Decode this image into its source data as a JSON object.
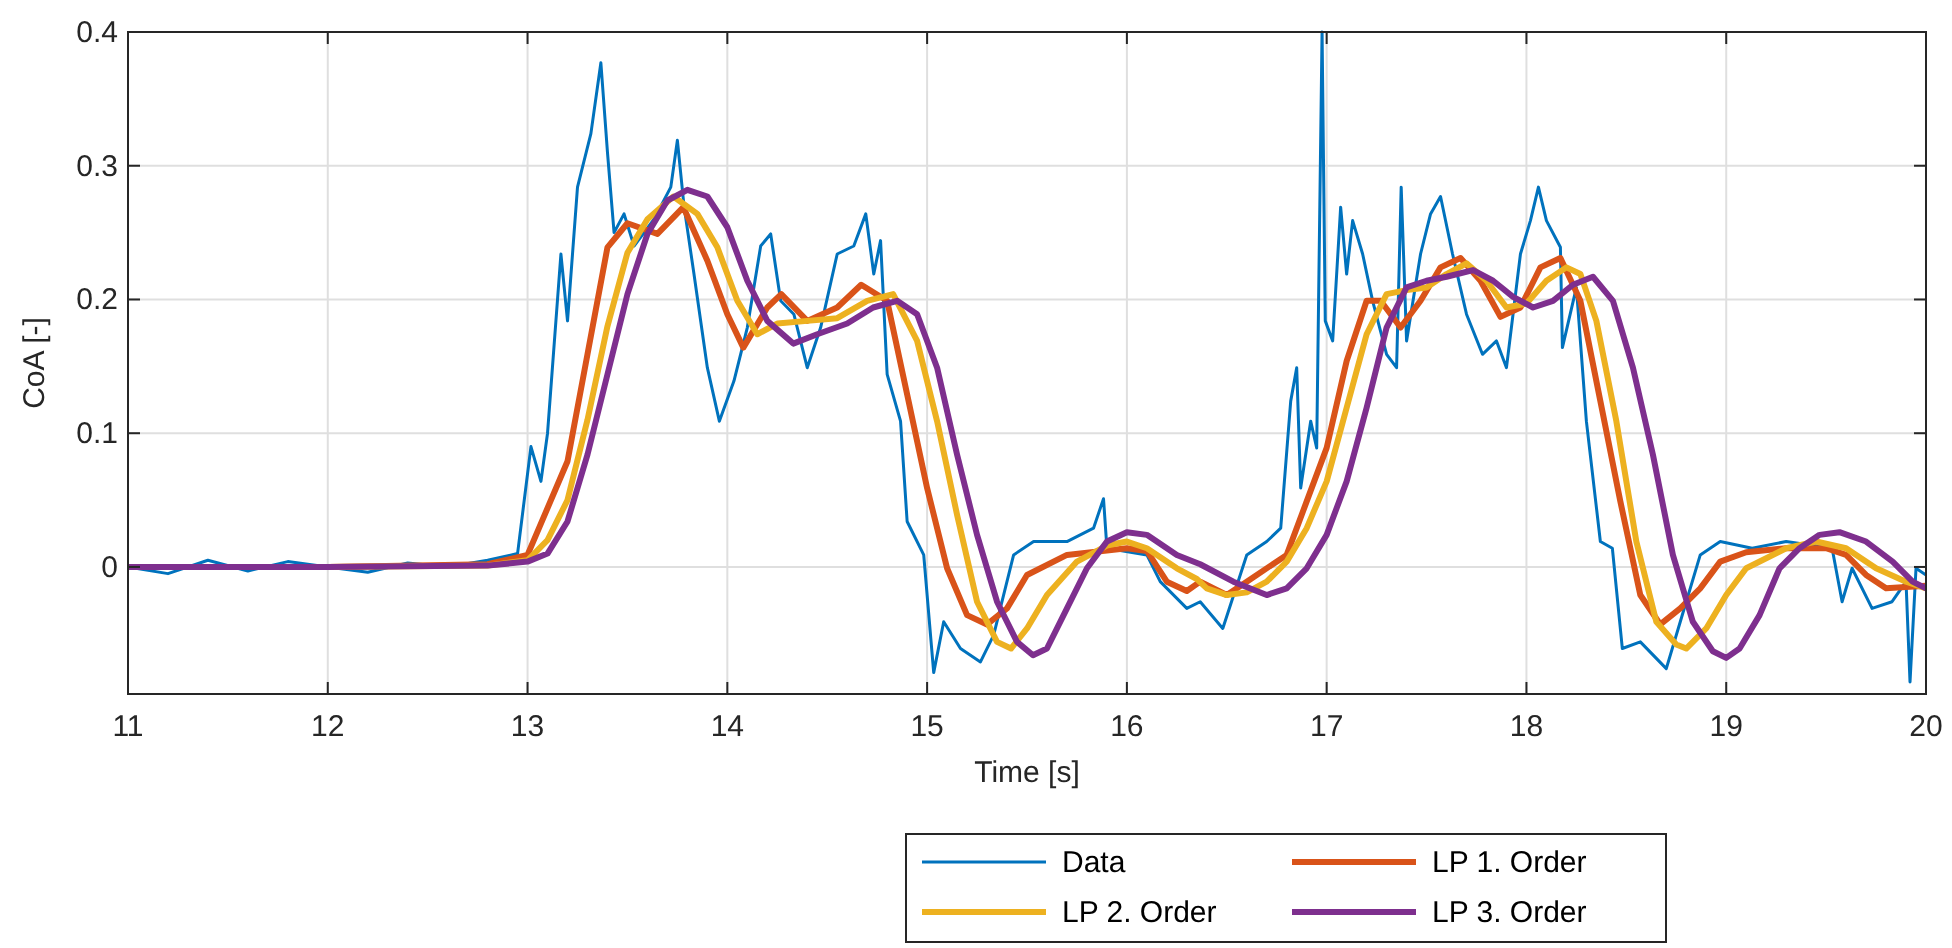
{
  "chart_data": {
    "type": "line",
    "xlabel": "Time [s]",
    "ylabel": "CoA [-]",
    "xlim": [
      11,
      20
    ],
    "ylim": [
      -0.095,
      0.4
    ],
    "xticks": [
      11,
      12,
      13,
      14,
      15,
      16,
      17,
      18,
      19,
      20
    ],
    "yticks": [
      0,
      0.1,
      0.2,
      0.3,
      0.4
    ],
    "grid": true,
    "legend": "bottom",
    "line_style": "solid",
    "marker": "none",
    "series": [
      {
        "name": "Data",
        "color": "#0072bd",
        "x": [
          11,
          11.2,
          11.4,
          11.6,
          11.8,
          12,
          12.2,
          12.4,
          12.6,
          12.8,
          12.95,
          13.017,
          13.067,
          13.1,
          13.167,
          13.2,
          13.25,
          13.317,
          13.367,
          13.4,
          13.433,
          13.483,
          13.533,
          13.633,
          13.717,
          13.75,
          13.783,
          13.833,
          13.9,
          13.96,
          14.033,
          14.1,
          14.167,
          14.217,
          14.267,
          14.333,
          14.4,
          14.467,
          14.55,
          14.633,
          14.693,
          14.733,
          14.767,
          14.8,
          14.867,
          14.9,
          14.983,
          15.033,
          15.083,
          15.167,
          15.267,
          15.333,
          15.433,
          15.533,
          15.7,
          15.833,
          15.883,
          15.9,
          16.1,
          16.167,
          16.3,
          16.367,
          16.48,
          16.6,
          16.7,
          16.77,
          16.82,
          16.85,
          16.87,
          16.92,
          16.95,
          16.977,
          16.993,
          17.03,
          17.07,
          17.1,
          17.13,
          17.18,
          17.23,
          17.3,
          17.35,
          17.373,
          17.4,
          17.47,
          17.52,
          17.57,
          17.63,
          17.7,
          17.78,
          17.85,
          17.9,
          17.97,
          18.02,
          18.06,
          18.1,
          18.17,
          18.18,
          18.25,
          18.3,
          18.37,
          18.43,
          18.48,
          18.57,
          18.7,
          18.77,
          18.87,
          18.97,
          19.13,
          19.3,
          19.53,
          19.58,
          19.63,
          19.73,
          19.83,
          19.9,
          19.92,
          19.95,
          20
        ],
        "values": [
          0,
          -0.005,
          0.005,
          -0.003,
          0.004,
          0,
          -0.004,
          0.003,
          0,
          0.005,
          0.01,
          0.09,
          0.064,
          0.1,
          0.234,
          0.184,
          0.284,
          0.324,
          0.377,
          0.31,
          0.25,
          0.264,
          0.24,
          0.26,
          0.284,
          0.319,
          0.27,
          0.219,
          0.149,
          0.109,
          0.139,
          0.179,
          0.24,
          0.249,
          0.199,
          0.189,
          0.149,
          0.179,
          0.234,
          0.24,
          0.264,
          0.219,
          0.244,
          0.144,
          0.109,
          0.034,
          0.009,
          -0.079,
          -0.041,
          -0.061,
          -0.071,
          -0.051,
          0.009,
          0.019,
          0.019,
          0.029,
          0.051,
          0.014,
          0.009,
          -0.011,
          -0.031,
          -0.026,
          -0.046,
          0.009,
          0.019,
          0.029,
          0.124,
          0.149,
          0.059,
          0.109,
          0.089,
          0.4,
          0.184,
          0.169,
          0.269,
          0.219,
          0.259,
          0.234,
          0.199,
          0.159,
          0.149,
          0.284,
          0.169,
          0.234,
          0.264,
          0.277,
          0.234,
          0.189,
          0.159,
          0.169,
          0.149,
          0.234,
          0.259,
          0.284,
          0.259,
          0.239,
          0.164,
          0.209,
          0.109,
          0.019,
          0.014,
          -0.061,
          -0.056,
          -0.076,
          -0.041,
          0.009,
          0.019,
          0.014,
          0.019,
          0.014,
          -0.026,
          -0.001,
          -0.031,
          -0.026,
          -0.011,
          -0.086,
          -0.001,
          -0.006
        ]
      },
      {
        "name": "LP 1. Order",
        "color": "#d95319",
        "x": [
          11,
          12,
          12.8,
          13,
          13.2,
          13.3,
          13.4,
          13.5,
          13.65,
          13.78,
          13.9,
          14,
          14.08,
          14.2,
          14.27,
          14.4,
          14.55,
          14.67,
          14.8,
          14.9,
          15,
          15.1,
          15.2,
          15.3,
          15.4,
          15.5,
          15.7,
          16,
          16.1,
          16.2,
          16.3,
          16.367,
          16.5,
          16.6,
          16.8,
          16.9,
          17,
          17.1,
          17.2,
          17.27,
          17.37,
          17.47,
          17.57,
          17.67,
          17.77,
          17.87,
          17.97,
          18.07,
          18.17,
          18.27,
          18.37,
          18.47,
          18.57,
          18.67,
          18.77,
          18.87,
          18.97,
          19.1,
          19.3,
          19.5,
          19.6,
          19.7,
          19.8,
          20
        ],
        "values": [
          0,
          0,
          0.002,
          0.009,
          0.079,
          0.159,
          0.239,
          0.257,
          0.249,
          0.269,
          0.229,
          0.189,
          0.164,
          0.194,
          0.204,
          0.184,
          0.194,
          0.211,
          0.199,
          0.129,
          0.059,
          -0.001,
          -0.036,
          -0.043,
          -0.031,
          -0.006,
          0.009,
          0.014,
          0.012,
          -0.011,
          -0.018,
          -0.011,
          -0.021,
          -0.011,
          0.009,
          0.049,
          0.089,
          0.154,
          0.199,
          0.199,
          0.179,
          0.199,
          0.224,
          0.231,
          0.214,
          0.187,
          0.194,
          0.224,
          0.231,
          0.199,
          0.124,
          0.049,
          -0.021,
          -0.043,
          -0.031,
          -0.016,
          0.004,
          0.011,
          0.014,
          0.014,
          0.009,
          -0.006,
          -0.016,
          -0.014
        ]
      },
      {
        "name": "LP 2. Order",
        "color": "#edb120",
        "x": [
          11,
          12,
          12.8,
          13,
          13.1,
          13.2,
          13.3,
          13.4,
          13.5,
          13.6,
          13.73,
          13.85,
          13.95,
          14.05,
          14.15,
          14.25,
          14.4,
          14.55,
          14.7,
          14.83,
          14.95,
          15.05,
          15.15,
          15.25,
          15.35,
          15.42,
          15.5,
          15.6,
          15.75,
          15.9,
          16,
          16.1,
          16.25,
          16.35,
          16.4,
          16.5,
          16.6,
          16.7,
          16.8,
          16.9,
          17,
          17.1,
          17.2,
          17.3,
          17.4,
          17.5,
          17.6,
          17.7,
          17.8,
          17.9,
          18,
          18.1,
          18.2,
          18.27,
          18.35,
          18.45,
          18.55,
          18.65,
          18.75,
          18.8,
          18.9,
          19,
          19.1,
          19.3,
          19.45,
          19.6,
          19.75,
          19.9,
          20
        ],
        "values": [
          0,
          0,
          0.001,
          0.005,
          0.02,
          0.05,
          0.11,
          0.18,
          0.235,
          0.26,
          0.277,
          0.264,
          0.239,
          0.199,
          0.174,
          0.182,
          0.184,
          0.186,
          0.199,
          0.204,
          0.169,
          0.109,
          0.039,
          -0.026,
          -0.056,
          -0.061,
          -0.046,
          -0.021,
          0.004,
          0.016,
          0.019,
          0.014,
          -0.001,
          -0.009,
          -0.016,
          -0.021,
          -0.019,
          -0.011,
          0.004,
          0.029,
          0.064,
          0.119,
          0.174,
          0.204,
          0.207,
          0.209,
          0.219,
          0.227,
          0.214,
          0.194,
          0.197,
          0.214,
          0.224,
          0.219,
          0.184,
          0.109,
          0.019,
          -0.041,
          -0.058,
          -0.061,
          -0.046,
          -0.021,
          -0.001,
          0.014,
          0.019,
          0.014,
          -0.001,
          -0.011,
          -0.016
        ]
      },
      {
        "name": "LP 3. Order",
        "color": "#7e2f8e",
        "x": [
          11,
          12,
          12.8,
          13,
          13.1,
          13.2,
          13.3,
          13.4,
          13.5,
          13.6,
          13.7,
          13.8,
          13.9,
          14,
          14.1,
          14.2,
          14.33,
          14.45,
          14.6,
          14.73,
          14.85,
          14.95,
          15.05,
          15.15,
          15.25,
          15.35,
          15.45,
          15.53,
          15.6,
          15.7,
          15.8,
          15.9,
          16,
          16.1,
          16.25,
          16.367,
          16.533,
          16.7,
          16.8,
          16.9,
          17,
          17.1,
          17.2,
          17.3,
          17.4,
          17.5,
          17.6,
          17.733,
          17.833,
          17.933,
          18.033,
          18.133,
          18.233,
          18.333,
          18.433,
          18.533,
          18.633,
          18.733,
          18.833,
          18.933,
          19,
          19.067,
          19.167,
          19.267,
          19.367,
          19.467,
          19.567,
          19.7,
          19.833,
          19.933,
          20
        ],
        "values": [
          0,
          0,
          0.001,
          0.004,
          0.01,
          0.034,
          0.084,
          0.144,
          0.204,
          0.249,
          0.274,
          0.282,
          0.277,
          0.254,
          0.214,
          0.184,
          0.167,
          0.174,
          0.182,
          0.194,
          0.199,
          0.189,
          0.149,
          0.084,
          0.024,
          -0.026,
          -0.056,
          -0.066,
          -0.061,
          -0.031,
          -0.001,
          0.019,
          0.026,
          0.024,
          0.009,
          0.002,
          -0.011,
          -0.021,
          -0.016,
          -0.001,
          0.024,
          0.064,
          0.119,
          0.179,
          0.209,
          0.214,
          0.217,
          0.222,
          0.214,
          0.202,
          0.194,
          0.199,
          0.211,
          0.217,
          0.199,
          0.149,
          0.084,
          0.009,
          -0.041,
          -0.063,
          -0.068,
          -0.061,
          -0.036,
          -0.001,
          0.014,
          0.024,
          0.026,
          0.019,
          0.004,
          -0.011,
          -0.016
        ]
      }
    ]
  }
}
